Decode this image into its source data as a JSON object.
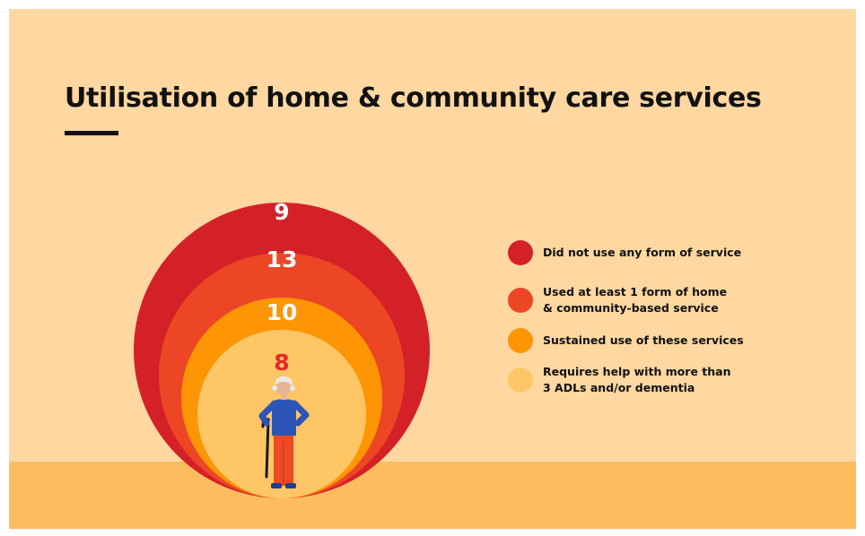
{
  "title": "Utilisation of home & community care services",
  "colors": {
    "background": "#fed7a1",
    "ground": "#fdbd5f",
    "rule": "#111111"
  },
  "chart_data": {
    "type": "nested-circles",
    "title": "Utilisation of home & community care services",
    "series": [
      {
        "label": "Did not use any form of service",
        "value": 9,
        "color": "#d42127",
        "text_color": "#ffffff"
      },
      {
        "label": "Used at least 1 form of home\n& community-based service",
        "value": 13,
        "color": "#ec4625",
        "text_color": "#ffffff"
      },
      {
        "label": "Sustained use of these services",
        "value": 10,
        "color": "#fd9504",
        "text_color": "#ffffff"
      },
      {
        "label": "Requires help with more than\n3 ADLs and/or dementia",
        "value": 8,
        "color": "#fec664",
        "text_color": "#e8262b"
      }
    ],
    "legend": "right"
  },
  "illustration": {
    "name": "elderly-person-with-cane"
  }
}
